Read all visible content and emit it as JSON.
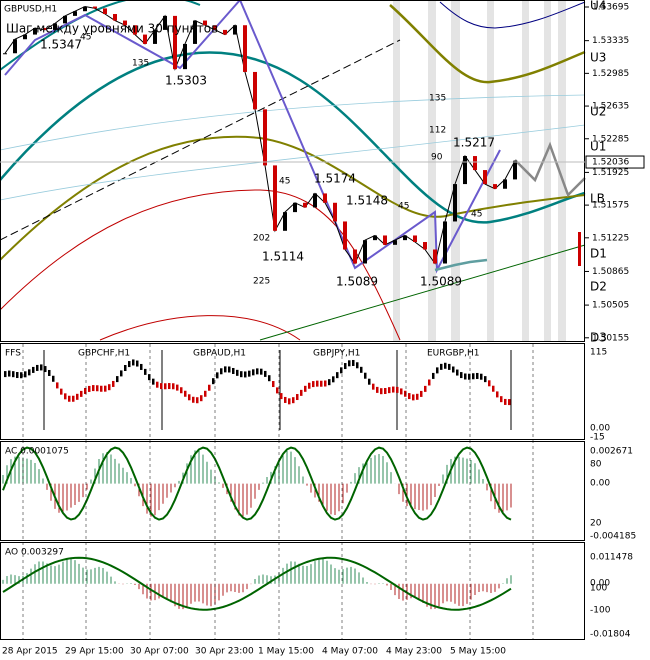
{
  "header": {
    "symbol": "GBPUSD,H1",
    "note": "Шаг между уровнями 30 пунктов"
  },
  "price": {
    "ylim": [
      1.5377,
      1.5011
    ],
    "yticks": [
      1.53695,
      1.53335,
      1.52985,
      1.52635,
      1.52285,
      1.51925,
      1.51575,
      1.51225,
      1.50865,
      1.50505,
      1.50155
    ],
    "last_price": 1.52036,
    "closes": [
      1.532,
      1.5335,
      1.534,
      1.5347,
      1.5345,
      1.5352,
      1.536,
      1.5365,
      1.537,
      1.5368,
      1.5362,
      1.5355,
      1.535,
      1.534,
      1.533,
      1.5345,
      1.536,
      1.5303,
      1.533,
      1.5355,
      1.535,
      1.5345,
      1.534,
      1.535,
      1.53,
      1.526,
      1.52,
      1.513,
      1.515,
      1.516,
      1.5155,
      1.517,
      1.516,
      1.514,
      1.511,
      1.5095,
      1.512,
      1.5125,
      1.5115,
      1.512,
      1.5125,
      1.5118,
      1.511,
      1.5095,
      1.514,
      1.518,
      1.521,
      1.5195,
      1.518,
      1.5175,
      1.5185,
      1.5205
    ]
  },
  "levels": [
    "U4",
    "U3",
    "U2",
    "U1",
    "LB",
    "D1",
    "D2",
    "D3"
  ],
  "annotations": [
    "1.5347",
    "1.5303",
    "1.5174",
    "1.5148",
    "1.5114",
    "1.5089",
    "1.5089",
    "1.5217",
    "135",
    "45",
    "45",
    "45",
    "202",
    "225",
    "135",
    "112",
    "90",
    "45"
  ],
  "panels": [
    {
      "title": "FFS",
      "pairs": [
        "GBPCHF,H1",
        "GBPAUD,H1",
        "GBPJPY,H1",
        "EURGBP,H1"
      ],
      "axis": [
        "115",
        "0.00",
        "-15"
      ]
    },
    {
      "title": "AC 0.0001075",
      "axis": [
        "0.002671",
        "80",
        "0.00",
        "20",
        "-0.004185"
      ]
    },
    {
      "title": "AO 0.003297",
      "axis": [
        "0.011478",
        "100",
        "0.00",
        "-100",
        "-0.01804"
      ]
    }
  ],
  "time_axis": [
    "28 Apr 2015",
    "29 Apr 15:00",
    "30 Apr 07:00",
    "30 Apr 23:00",
    "1 May 15:00",
    "4 May 07:00",
    "4 May 23:00",
    "5 May 15:00"
  ]
}
